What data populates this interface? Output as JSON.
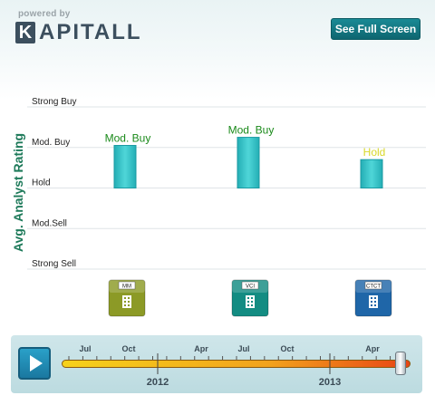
{
  "header": {
    "powered_by": "powered by",
    "logo_letter": "K",
    "logo_rest": "APITALL",
    "fullscreen_label": "See Full Screen"
  },
  "colors": {
    "bar_fill": "#3cc6c9",
    "modbuy_label": "#1a8a1a",
    "hold_label": "#d8d82a",
    "axis_title": "#1e7a5a"
  },
  "chart_data": {
    "type": "bar",
    "ylabel": "Avg. Analyst Rating",
    "ytick_labels": [
      "Strong Sell",
      "Mod.Sell",
      "Hold",
      "Mod. Buy",
      "Strong Buy"
    ],
    "ylim": [
      1,
      5
    ],
    "categories": [
      "MM",
      "VCI",
      "CTCT"
    ],
    "values": [
      4.05,
      4.25,
      3.7
    ],
    "value_labels": [
      "Mod. Buy",
      "Mod. Buy",
      "Hold"
    ],
    "label_colors": [
      "#1a8a1a",
      "#1a8a1a",
      "#d8d82a"
    ],
    "icon_colors": [
      "#8c9a26",
      "#138c82",
      "#1f66a8"
    ],
    "grid": true
  },
  "timeline": {
    "month_labels": [
      "Jul",
      "Oct",
      "Apr",
      "Jul",
      "Oct",
      "Apr"
    ],
    "year_labels": [
      "2012",
      "2013"
    ],
    "progress": 0.97
  }
}
